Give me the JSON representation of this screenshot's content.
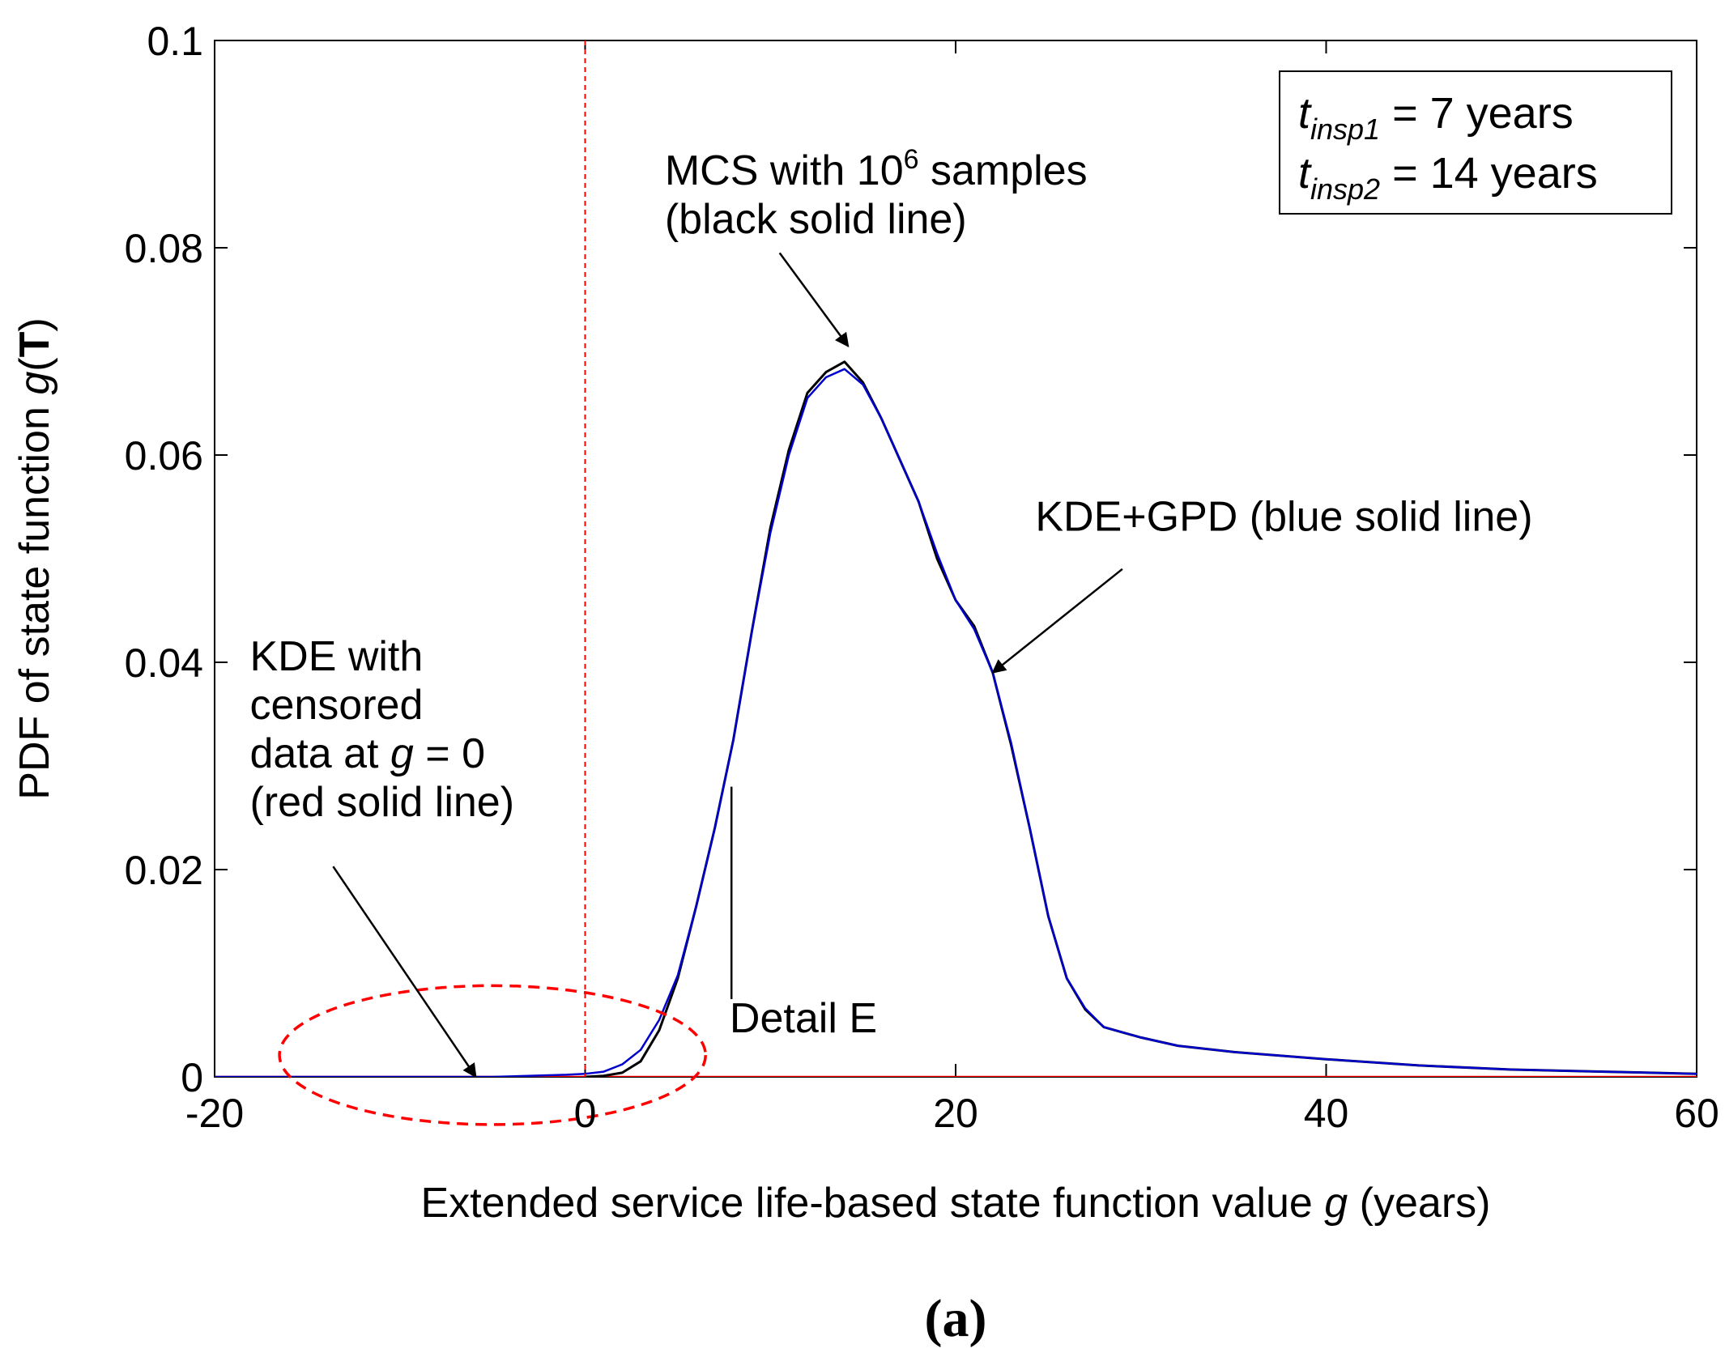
{
  "chart_data": {
    "type": "line",
    "title": "",
    "xlabel": {
      "pre": "Extended service life-based state function value ",
      "var": "g",
      "post": " (years)"
    },
    "ylabel": {
      "pre": "PDF of state function ",
      "var": "g",
      "open": "(",
      "bold": "T",
      "close": ")"
    },
    "xlim": [
      -20,
      60
    ],
    "ylim": [
      0,
      0.1
    ],
    "xticks": [
      -20,
      0,
      20,
      40,
      60
    ],
    "xtick_labels": [
      "-20",
      "0",
      "20",
      "40",
      "60"
    ],
    "yticks": [
      0,
      0.02,
      0.04,
      0.06,
      0.08,
      0.1
    ],
    "ytick_labels": [
      "0",
      "0.02",
      "0.04",
      "0.06",
      "0.08",
      "0.1"
    ],
    "series": [
      {
        "name": "MCS with 10^6 samples (black solid line)",
        "color": "#000000",
        "x": [
          0,
          1,
          2,
          3,
          4,
          5,
          6,
          7,
          8,
          9,
          10,
          11,
          12,
          13,
          14,
          15,
          16,
          17,
          18,
          19,
          20,
          21,
          22,
          23,
          24,
          25,
          26,
          27,
          28,
          30,
          32,
          35,
          40,
          45,
          50,
          55,
          60
        ],
        "y": [
          0,
          0.0001,
          0.0004,
          0.0015,
          0.0045,
          0.0095,
          0.0165,
          0.024,
          0.0325,
          0.043,
          0.053,
          0.0605,
          0.066,
          0.068,
          0.069,
          0.067,
          0.0635,
          0.0595,
          0.0555,
          0.05,
          0.046,
          0.0435,
          0.039,
          0.032,
          0.024,
          0.0155,
          0.0095,
          0.0065,
          0.0048,
          0.0038,
          0.003,
          0.0024,
          0.0017,
          0.0011,
          0.0007,
          0.0005,
          0.0003
        ]
      },
      {
        "name": "KDE+GPD (blue solid line)",
        "color": "#0000cc",
        "x": [
          -20,
          -10,
          -5,
          -1,
          0,
          1,
          2,
          3,
          4,
          5,
          6,
          7,
          8,
          9,
          10,
          11,
          12,
          13,
          14,
          15,
          16,
          17,
          18,
          19,
          20,
          21,
          22,
          23,
          24,
          25,
          26,
          27,
          28,
          30,
          32,
          35,
          40,
          45,
          50,
          55,
          60
        ],
        "y": [
          0,
          0,
          0,
          0.0002,
          0.0003,
          0.0005,
          0.0012,
          0.0026,
          0.0055,
          0.0098,
          0.0165,
          0.024,
          0.0325,
          0.043,
          0.0525,
          0.06,
          0.0655,
          0.0675,
          0.0683,
          0.0668,
          0.0635,
          0.0595,
          0.0555,
          0.0505,
          0.046,
          0.0432,
          0.039,
          0.0322,
          0.024,
          0.0155,
          0.0095,
          0.0066,
          0.0048,
          0.0038,
          0.003,
          0.0024,
          0.0017,
          0.0011,
          0.0007,
          0.0005,
          0.0003
        ]
      },
      {
        "name": "KDE with censored data at g = 0 (red solid line)",
        "color": "#ff0000",
        "x": [
          -20,
          60
        ],
        "y": [
          0,
          0
        ]
      }
    ],
    "reference_lines": [
      {
        "type": "vertical",
        "x": 0,
        "style": "dashed",
        "color": "#ff0000"
      }
    ],
    "highlight_ellipse": {
      "center_x": -5,
      "center_y": 0.0021,
      "radius_x": 11.5,
      "radius_y": 0.0067,
      "color": "#ff0000",
      "style": "dashed"
    },
    "legend_box": {
      "position": "top-right",
      "line1": {
        "var": "t",
        "sub": "insp1",
        "rest": " = 7 years"
      },
      "line2": {
        "var": "t",
        "sub": "insp2",
        "rest": " = 14 years"
      }
    },
    "annotations": {
      "mcs": {
        "line1_pre": "MCS with 10",
        "line1_sup": "6",
        "line1_post": " samples",
        "line2": "(black solid line)",
        "text_at": [
          4.3,
          0.0861
        ],
        "arrow_from": [
          10.5,
          0.0795
        ],
        "arrow_to": [
          14.2,
          0.0705
        ]
      },
      "kde_gpd": {
        "text": "KDE+GPD (blue solid line)",
        "text_at": [
          24.3,
          0.0527
        ],
        "arrow_from": [
          29,
          0.049
        ],
        "arrow_to": [
          22,
          0.039
        ]
      },
      "kde_censored": {
        "line1": "KDE with",
        "line2": "censored",
        "line3_pre": "data at ",
        "line3_var": "g",
        "line3_post": " = 0",
        "line4": "(red solid line)",
        "text_at": [
          -18.1,
          0.0392
        ],
        "arrow_from": [
          -13.6,
          0.0203
        ],
        "arrow_to": [
          -5.9,
          0
        ]
      },
      "detail_e": {
        "text": "Detail E",
        "text_at": [
          7.8,
          0.0043
        ],
        "line_from": [
          7.9,
          0.028
        ],
        "line_to": [
          7.9,
          0.0075
        ]
      }
    }
  },
  "caption": {
    "open": "(",
    "letter": "a",
    "close": ")"
  }
}
